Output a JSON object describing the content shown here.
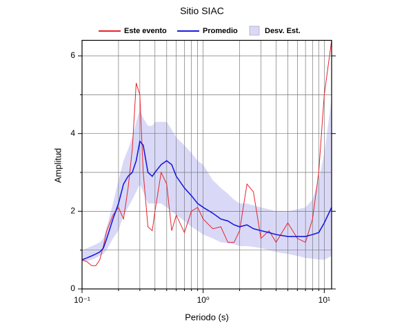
{
  "chart_data": {
    "type": "line",
    "title": "Sitio SIAC",
    "x_label": "Periodo (s)",
    "y_label": "Amplitud",
    "x_log": true,
    "grid": true,
    "legend": "top",
    "xlim": [
      0.1,
      11.5
    ],
    "ylim": [
      0,
      6.4
    ],
    "xticks": [
      {
        "value": 0.1,
        "label": "10⁻¹"
      },
      {
        "value": 1,
        "label": "10⁰"
      },
      {
        "value": 10,
        "label": "10¹"
      }
    ],
    "xminorticks": [
      0.2,
      0.3,
      0.4,
      0.5,
      0.6,
      0.7,
      0.8,
      0.9,
      2,
      3,
      4,
      5,
      6,
      7,
      8,
      9
    ],
    "yticks": [
      0,
      2,
      4,
      6
    ],
    "yminorticks": [
      1,
      3,
      5
    ],
    "x": [
      0.1,
      0.11,
      0.12,
      0.13,
      0.14,
      0.15,
      0.16,
      0.18,
      0.2,
      0.22,
      0.24,
      0.26,
      0.28,
      0.3,
      0.32,
      0.35,
      0.38,
      0.4,
      0.45,
      0.5,
      0.55,
      0.6,
      0.7,
      0.8,
      0.9,
      1.0,
      1.2,
      1.4,
      1.6,
      1.8,
      2.0,
      2.3,
      2.6,
      3.0,
      3.5,
      4.0,
      5.0,
      6.0,
      7.0,
      8.0,
      9.0,
      10.0,
      11.5
    ],
    "series": [
      {
        "name": "Este evento",
        "color": "#e8202a",
        "values": [
          0.75,
          0.7,
          0.6,
          0.6,
          0.75,
          1.1,
          1.5,
          1.9,
          2.1,
          1.8,
          2.6,
          3.6,
          5.3,
          5.0,
          3.0,
          1.6,
          1.5,
          2.0,
          3.0,
          2.7,
          1.5,
          1.9,
          1.45,
          2.0,
          2.1,
          1.8,
          1.55,
          1.6,
          1.2,
          1.2,
          1.5,
          2.7,
          2.5,
          1.3,
          1.5,
          1.2,
          1.7,
          1.3,
          1.2,
          1.8,
          3.0,
          5.0,
          6.4
        ]
      },
      {
        "name": "Promedio",
        "color": "#1a1adc",
        "values": [
          0.75,
          0.8,
          0.85,
          0.9,
          0.95,
          1.05,
          1.3,
          1.8,
          2.2,
          2.7,
          2.9,
          3.0,
          3.3,
          3.8,
          3.7,
          3.0,
          2.9,
          3.0,
          3.2,
          3.3,
          3.2,
          2.9,
          2.6,
          2.4,
          2.2,
          2.1,
          1.95,
          1.8,
          1.75,
          1.65,
          1.6,
          1.65,
          1.55,
          1.5,
          1.45,
          1.4,
          1.35,
          1.35,
          1.35,
          1.4,
          1.45,
          1.7,
          2.1
        ]
      },
      {
        "name": "Desv. Est.",
        "color": "#d9d9f7",
        "type": "band",
        "lower": [
          0.7,
          0.72,
          0.75,
          0.8,
          0.85,
          0.9,
          1.0,
          1.3,
          1.5,
          1.9,
          2.1,
          2.3,
          2.5,
          2.7,
          2.5,
          2.2,
          2.2,
          2.2,
          2.2,
          2.1,
          2.0,
          1.9,
          1.75,
          1.6,
          1.5,
          1.4,
          1.3,
          1.2,
          1.18,
          1.15,
          1.1,
          1.1,
          1.08,
          1.05,
          1.0,
          0.95,
          0.9,
          0.85,
          0.8,
          0.78,
          0.76,
          0.75,
          0.85
        ],
        "upper": [
          1.0,
          1.05,
          1.1,
          1.15,
          1.2,
          1.3,
          1.6,
          2.2,
          2.8,
          3.3,
          3.6,
          3.9,
          4.3,
          4.6,
          4.4,
          4.2,
          4.2,
          4.3,
          4.3,
          4.3,
          4.1,
          3.9,
          3.7,
          3.5,
          3.3,
          3.2,
          2.8,
          2.6,
          2.45,
          2.3,
          2.2,
          2.2,
          2.15,
          2.1,
          2.05,
          2.0,
          2.0,
          2.05,
          2.1,
          2.3,
          2.8,
          3.5,
          4.9
        ]
      }
    ]
  }
}
